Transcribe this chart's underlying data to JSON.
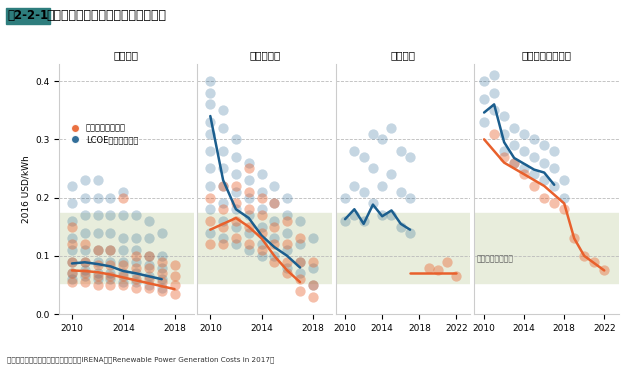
{
  "title_prefix": "図2-2-1",
  "title_main": "再生可能エネルギーのコストの低下",
  "ylabel": "2016 USD/kWh",
  "source": "資料：国際再生可能エネルギー機関（IRENA）「Renewable Power Generation Costs in 2017」",
  "legend_auction": "入札データベース",
  "legend_lcoe": "LCOEデータベース",
  "sections": [
    "陸上風力",
    "太陽光発電",
    "洋上風力",
    "集光型太陽熱発電"
  ],
  "fossil_label": "化石燃料の価格帯",
  "fossil_band": [
    0.053,
    0.174
  ],
  "ylim": [
    0.0,
    0.43
  ],
  "yticks": [
    0.0,
    0.1,
    0.2,
    0.3,
    0.4
  ],
  "onshore_wind": {
    "lcoe_line": {
      "x": [
        2010,
        2011,
        2012,
        2013,
        2014,
        2015,
        2016,
        2017
      ],
      "y": [
        0.087,
        0.089,
        0.086,
        0.082,
        0.074,
        0.07,
        0.065,
        0.06
      ]
    },
    "auction_line": {
      "x": [
        2010,
        2011,
        2012,
        2013,
        2014,
        2015,
        2016,
        2017,
        2018
      ],
      "y": [
        0.075,
        0.074,
        0.072,
        0.068,
        0.063,
        0.058,
        0.053,
        0.048,
        0.043
      ]
    },
    "lcoe_scatter": {
      "x": [
        2010,
        2010,
        2010,
        2010,
        2010,
        2010,
        2010,
        2010,
        2011,
        2011,
        2011,
        2011,
        2011,
        2011,
        2011,
        2011,
        2012,
        2012,
        2012,
        2012,
        2012,
        2012,
        2012,
        2012,
        2013,
        2013,
        2013,
        2013,
        2013,
        2013,
        2013,
        2014,
        2014,
        2014,
        2014,
        2014,
        2014,
        2014,
        2015,
        2015,
        2015,
        2015,
        2015,
        2015,
        2016,
        2016,
        2016,
        2016,
        2016,
        2016,
        2017,
        2017,
        2017,
        2017,
        2017
      ],
      "y": [
        0.06,
        0.07,
        0.09,
        0.11,
        0.13,
        0.16,
        0.19,
        0.22,
        0.065,
        0.075,
        0.09,
        0.11,
        0.14,
        0.17,
        0.2,
        0.23,
        0.06,
        0.07,
        0.09,
        0.11,
        0.14,
        0.17,
        0.2,
        0.23,
        0.06,
        0.07,
        0.09,
        0.11,
        0.14,
        0.17,
        0.2,
        0.055,
        0.07,
        0.09,
        0.11,
        0.13,
        0.17,
        0.21,
        0.055,
        0.07,
        0.09,
        0.11,
        0.13,
        0.17,
        0.05,
        0.065,
        0.085,
        0.1,
        0.13,
        0.16,
        0.045,
        0.06,
        0.08,
        0.1,
        0.14
      ]
    },
    "auction_scatter": {
      "x": [
        2010,
        2010,
        2010,
        2010,
        2010,
        2011,
        2011,
        2011,
        2011,
        2012,
        2012,
        2012,
        2012,
        2013,
        2013,
        2013,
        2013,
        2014,
        2014,
        2014,
        2014,
        2015,
        2015,
        2015,
        2015,
        2016,
        2016,
        2016,
        2016,
        2017,
        2017,
        2017,
        2017,
        2018,
        2018,
        2018,
        2018
      ],
      "y": [
        0.055,
        0.07,
        0.09,
        0.12,
        0.15,
        0.055,
        0.07,
        0.09,
        0.12,
        0.05,
        0.065,
        0.085,
        0.11,
        0.05,
        0.065,
        0.085,
        0.11,
        0.05,
        0.065,
        0.085,
        0.2,
        0.045,
        0.06,
        0.08,
        0.1,
        0.045,
        0.06,
        0.08,
        0.1,
        0.04,
        0.055,
        0.07,
        0.09,
        0.035,
        0.05,
        0.065,
        0.085
      ]
    }
  },
  "solar_pv": {
    "lcoe_line": {
      "x": [
        2010,
        2011,
        2012,
        2013,
        2014,
        2015,
        2016,
        2017
      ],
      "y": [
        0.34,
        0.23,
        0.18,
        0.165,
        0.135,
        0.115,
        0.1,
        0.08
      ]
    },
    "auction_line": {
      "x": [
        2010,
        2011,
        2012,
        2013,
        2014,
        2015,
        2016,
        2017
      ],
      "y": [
        0.145,
        0.155,
        0.165,
        0.15,
        0.13,
        0.1,
        0.075,
        0.055
      ]
    },
    "lcoe_scatter": {
      "x": [
        2010,
        2010,
        2010,
        2010,
        2010,
        2010,
        2010,
        2010,
        2010,
        2010,
        2011,
        2011,
        2011,
        2011,
        2011,
        2011,
        2011,
        2011,
        2012,
        2012,
        2012,
        2012,
        2012,
        2012,
        2012,
        2013,
        2013,
        2013,
        2013,
        2013,
        2013,
        2014,
        2014,
        2014,
        2014,
        2014,
        2014,
        2015,
        2015,
        2015,
        2015,
        2015,
        2016,
        2016,
        2016,
        2016,
        2016,
        2017,
        2017,
        2017,
        2017,
        2018,
        2018,
        2018
      ],
      "y": [
        0.25,
        0.28,
        0.31,
        0.33,
        0.36,
        0.38,
        0.4,
        0.22,
        0.18,
        0.14,
        0.19,
        0.22,
        0.25,
        0.28,
        0.32,
        0.35,
        0.16,
        0.13,
        0.15,
        0.18,
        0.21,
        0.24,
        0.27,
        0.3,
        0.12,
        0.14,
        0.17,
        0.2,
        0.23,
        0.26,
        0.11,
        0.12,
        0.15,
        0.18,
        0.21,
        0.24,
        0.1,
        0.1,
        0.13,
        0.16,
        0.19,
        0.22,
        0.08,
        0.11,
        0.14,
        0.17,
        0.2,
        0.07,
        0.09,
        0.12,
        0.16,
        0.05,
        0.08,
        0.13
      ]
    },
    "auction_scatter": {
      "x": [
        2010,
        2010,
        2010,
        2011,
        2011,
        2011,
        2011,
        2012,
        2012,
        2012,
        2012,
        2013,
        2013,
        2013,
        2013,
        2013,
        2014,
        2014,
        2014,
        2014,
        2015,
        2015,
        2015,
        2015,
        2016,
        2016,
        2016,
        2016,
        2017,
        2017,
        2017,
        2017,
        2018,
        2018,
        2018
      ],
      "y": [
        0.12,
        0.16,
        0.2,
        0.12,
        0.15,
        0.18,
        0.22,
        0.13,
        0.16,
        0.19,
        0.22,
        0.12,
        0.15,
        0.18,
        0.21,
        0.25,
        0.11,
        0.14,
        0.17,
        0.2,
        0.09,
        0.12,
        0.15,
        0.19,
        0.07,
        0.09,
        0.12,
        0.16,
        0.04,
        0.06,
        0.09,
        0.13,
        0.03,
        0.05,
        0.09
      ]
    }
  },
  "offshore_wind": {
    "lcoe_line": {
      "x": [
        2010,
        2011,
        2012,
        2013,
        2014,
        2015,
        2016,
        2017
      ],
      "y": [
        0.163,
        0.18,
        0.155,
        0.188,
        0.168,
        0.178,
        0.155,
        0.145
      ]
    },
    "auction_line": {
      "x": [
        2017,
        2022
      ],
      "y": [
        0.07,
        0.07
      ]
    },
    "lcoe_scatter": {
      "x": [
        2010,
        2010,
        2011,
        2011,
        2011,
        2012,
        2012,
        2012,
        2013,
        2013,
        2013,
        2014,
        2014,
        2014,
        2015,
        2015,
        2015,
        2016,
        2016,
        2016,
        2017,
        2017,
        2017
      ],
      "y": [
        0.16,
        0.2,
        0.17,
        0.22,
        0.28,
        0.16,
        0.21,
        0.27,
        0.19,
        0.25,
        0.31,
        0.17,
        0.22,
        0.3,
        0.17,
        0.24,
        0.32,
        0.15,
        0.21,
        0.28,
        0.14,
        0.2,
        0.27
      ]
    },
    "auction_scatter": {
      "x": [
        2019,
        2020,
        2021,
        2022
      ],
      "y": [
        0.08,
        0.075,
        0.09,
        0.065
      ]
    }
  },
  "csp": {
    "lcoe_line": {
      "x": [
        2010,
        2011,
        2012,
        2013,
        2014,
        2015,
        2016,
        2017
      ],
      "y": [
        0.346,
        0.36,
        0.295,
        0.268,
        0.258,
        0.248,
        0.243,
        0.222
      ]
    },
    "auction_line": {
      "x": [
        2010,
        2012,
        2014,
        2015,
        2016,
        2018,
        2019,
        2020,
        2022
      ],
      "y": [
        0.3,
        0.26,
        0.24,
        0.23,
        0.22,
        0.19,
        0.13,
        0.1,
        0.075
      ]
    },
    "lcoe_scatter": {
      "x": [
        2010,
        2010,
        2010,
        2011,
        2011,
        2011,
        2012,
        2012,
        2012,
        2013,
        2013,
        2013,
        2014,
        2014,
        2014,
        2015,
        2015,
        2015,
        2016,
        2016,
        2016,
        2017,
        2017,
        2017,
        2018,
        2018
      ],
      "y": [
        0.33,
        0.37,
        0.4,
        0.35,
        0.38,
        0.41,
        0.28,
        0.31,
        0.34,
        0.26,
        0.29,
        0.32,
        0.25,
        0.28,
        0.31,
        0.24,
        0.27,
        0.3,
        0.23,
        0.26,
        0.29,
        0.22,
        0.25,
        0.28,
        0.2,
        0.23
      ]
    },
    "auction_scatter": {
      "x": [
        2011,
        2012,
        2013,
        2014,
        2015,
        2016,
        2017,
        2018,
        2019,
        2020,
        2021,
        2022
      ],
      "y": [
        0.31,
        0.27,
        0.26,
        0.24,
        0.22,
        0.2,
        0.19,
        0.18,
        0.13,
        0.1,
        0.09,
        0.075
      ]
    }
  },
  "colors": {
    "auction": "#E8602C",
    "lcoe": "#1B5E8E",
    "fossil_band": "#e8eddc",
    "background": "#ffffff",
    "grid": "#aaaaaa"
  }
}
